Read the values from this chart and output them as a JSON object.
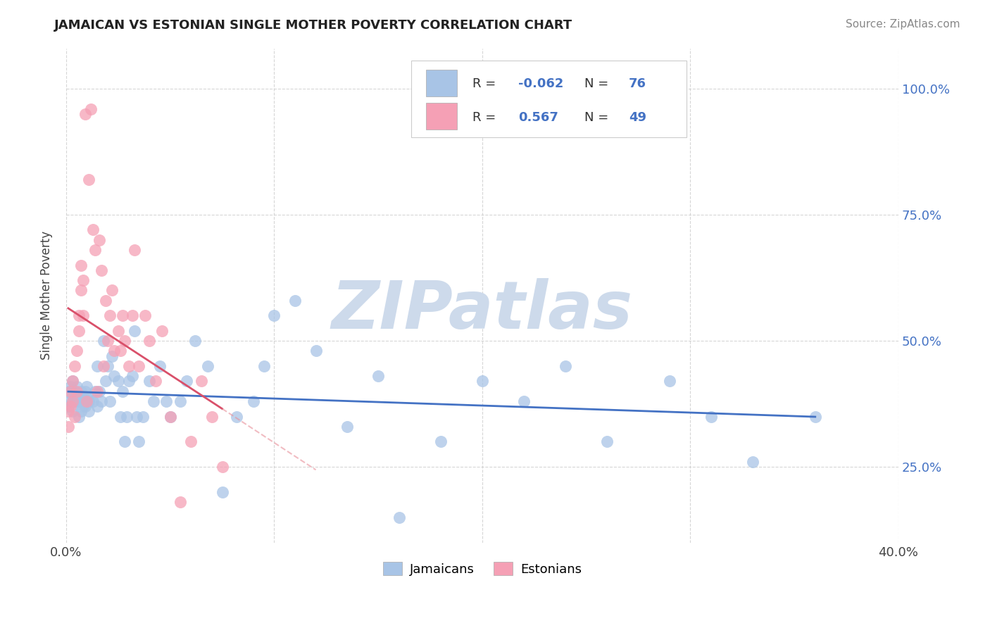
{
  "title": "JAMAICAN VS ESTONIAN SINGLE MOTHER POVERTY CORRELATION CHART",
  "source": "Source: ZipAtlas.com",
  "ylabel": "Single Mother Poverty",
  "xlim": [
    0.0,
    0.4
  ],
  "ylim": [
    0.1,
    1.08
  ],
  "xtick_positions": [
    0.0,
    0.1,
    0.2,
    0.3,
    0.4
  ],
  "xtick_labels": [
    "0.0%",
    "",
    "",
    "",
    "40.0%"
  ],
  "ytick_positions": [
    0.25,
    0.5,
    0.75,
    1.0
  ],
  "ytick_labels": [
    "25.0%",
    "50.0%",
    "75.0%",
    "100.0%"
  ],
  "jamaican_R": -0.062,
  "jamaican_N": 76,
  "estonian_R": 0.567,
  "estonian_N": 49,
  "jamaican_color": "#a8c4e6",
  "estonian_color": "#f5a0b5",
  "jamaican_line_color": "#4472c4",
  "estonian_line_color": "#d9506a",
  "estonian_line_dash_color": "#e8909a",
  "watermark": "ZIPatlas",
  "watermark_color": "#cddaeb",
  "background_color": "#ffffff",
  "grid_color": "#cccccc",
  "title_color": "#222222",
  "legend_R_color": "#4472c4",
  "legend_text_color": "#333333",
  "jamaican_x": [
    0.001,
    0.001,
    0.002,
    0.002,
    0.003,
    0.003,
    0.003,
    0.004,
    0.004,
    0.005,
    0.005,
    0.006,
    0.006,
    0.007,
    0.007,
    0.007,
    0.008,
    0.008,
    0.009,
    0.009,
    0.01,
    0.01,
    0.011,
    0.011,
    0.012,
    0.013,
    0.014,
    0.015,
    0.015,
    0.016,
    0.017,
    0.018,
    0.019,
    0.02,
    0.021,
    0.022,
    0.023,
    0.025,
    0.026,
    0.027,
    0.028,
    0.029,
    0.03,
    0.032,
    0.033,
    0.034,
    0.035,
    0.037,
    0.04,
    0.042,
    0.045,
    0.048,
    0.05,
    0.055,
    0.058,
    0.062,
    0.068,
    0.075,
    0.082,
    0.09,
    0.095,
    0.1,
    0.11,
    0.12,
    0.135,
    0.15,
    0.16,
    0.18,
    0.2,
    0.22,
    0.24,
    0.26,
    0.29,
    0.31,
    0.33,
    0.36
  ],
  "jamaican_y": [
    0.37,
    0.4,
    0.38,
    0.41,
    0.36,
    0.39,
    0.42,
    0.38,
    0.4,
    0.38,
    0.41,
    0.35,
    0.38,
    0.39,
    0.36,
    0.4,
    0.37,
    0.39,
    0.37,
    0.4,
    0.38,
    0.41,
    0.36,
    0.38,
    0.39,
    0.38,
    0.4,
    0.37,
    0.45,
    0.4,
    0.38,
    0.5,
    0.42,
    0.45,
    0.38,
    0.47,
    0.43,
    0.42,
    0.35,
    0.4,
    0.3,
    0.35,
    0.42,
    0.43,
    0.52,
    0.35,
    0.3,
    0.35,
    0.42,
    0.38,
    0.45,
    0.38,
    0.35,
    0.38,
    0.42,
    0.5,
    0.45,
    0.2,
    0.35,
    0.38,
    0.45,
    0.55,
    0.58,
    0.48,
    0.33,
    0.43,
    0.15,
    0.3,
    0.42,
    0.38,
    0.45,
    0.3,
    0.42,
    0.35,
    0.26,
    0.35
  ],
  "estonian_x": [
    0.001,
    0.001,
    0.002,
    0.002,
    0.003,
    0.003,
    0.004,
    0.004,
    0.005,
    0.005,
    0.006,
    0.006,
    0.007,
    0.007,
    0.008,
    0.008,
    0.009,
    0.01,
    0.011,
    0.012,
    0.013,
    0.014,
    0.015,
    0.016,
    0.017,
    0.018,
    0.019,
    0.02,
    0.021,
    0.022,
    0.023,
    0.025,
    0.026,
    0.027,
    0.028,
    0.03,
    0.032,
    0.033,
    0.035,
    0.038,
    0.04,
    0.043,
    0.046,
    0.05,
    0.055,
    0.06,
    0.065,
    0.07,
    0.075
  ],
  "estonian_y": [
    0.33,
    0.36,
    0.37,
    0.4,
    0.38,
    0.42,
    0.35,
    0.45,
    0.4,
    0.48,
    0.52,
    0.55,
    0.6,
    0.65,
    0.55,
    0.62,
    0.95,
    0.38,
    0.82,
    0.96,
    0.72,
    0.68,
    0.4,
    0.7,
    0.64,
    0.45,
    0.58,
    0.5,
    0.55,
    0.6,
    0.48,
    0.52,
    0.48,
    0.55,
    0.5,
    0.45,
    0.55,
    0.68,
    0.45,
    0.55,
    0.5,
    0.42,
    0.52,
    0.35,
    0.18,
    0.3,
    0.42,
    0.35,
    0.25
  ]
}
